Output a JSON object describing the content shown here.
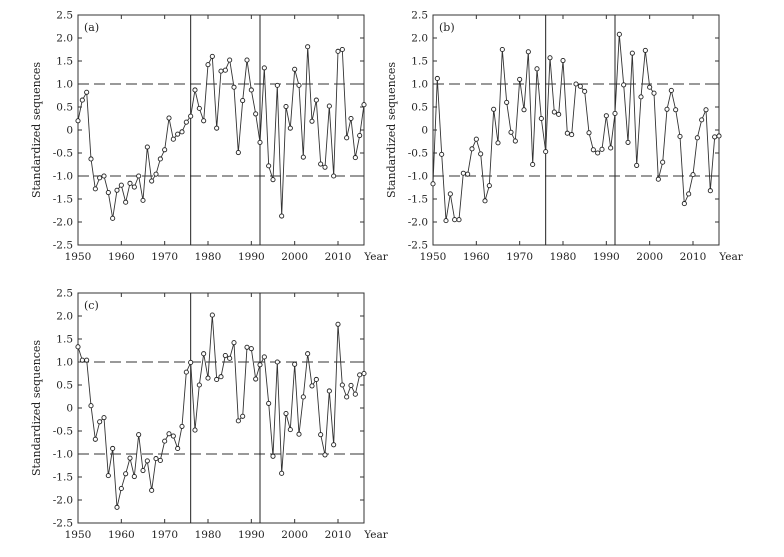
{
  "figure": {
    "ylabel": "Standardized sequences",
    "x_ticks": [
      "1950",
      "1960",
      "1970",
      "1980",
      "1990",
      "2000",
      "2010"
    ],
    "x_unit": "Year",
    "y_ticks": [
      "2.5",
      "2.0",
      "1.5",
      "1.0",
      "0.5",
      "0",
      "-0.5",
      "-1.0",
      "-1.5",
      "-2.0",
      "-2.5"
    ]
  },
  "chart_data": [
    {
      "type": "line",
      "panel_label": "(a)",
      "ylabel": "Standardized sequences",
      "xlim": [
        1950,
        2016
      ],
      "ylim": [
        -2.5,
        2.5
      ],
      "grid": false,
      "reference_lines_y": [
        1.0,
        -1.0
      ],
      "vertical_lines_x": [
        1976,
        1992
      ],
      "x": [
        1950,
        1951,
        1952,
        1953,
        1954,
        1955,
        1956,
        1957,
        1958,
        1959,
        1960,
        1961,
        1962,
        1963,
        1964,
        1965,
        1966,
        1967,
        1968,
        1969,
        1970,
        1971,
        1972,
        1973,
        1974,
        1975,
        1976,
        1977,
        1978,
        1979,
        1980,
        1981,
        1982,
        1983,
        1984,
        1985,
        1986,
        1987,
        1988,
        1989,
        1990,
        1991,
        1992,
        1993,
        1994,
        1995,
        1996,
        1997,
        1998,
        1999,
        2000,
        2001,
        2002,
        2003,
        2004,
        2005,
        2006,
        2007,
        2008,
        2009,
        2010,
        2011,
        2012,
        2013,
        2014,
        2015,
        2016
      ],
      "values": [
        0.2,
        0.65,
        0.82,
        -0.63,
        -1.28,
        -1.04,
        -1.0,
        -1.36,
        -1.92,
        -1.31,
        -1.2,
        -1.57,
        -1.16,
        -1.24,
        -1.0,
        -1.53,
        -0.37,
        -1.11,
        -0.96,
        -0.63,
        -0.43,
        0.26,
        -0.2,
        -0.09,
        -0.04,
        0.17,
        0.3,
        0.87,
        0.47,
        0.2,
        1.42,
        1.6,
        0.04,
        1.28,
        1.3,
        1.52,
        0.93,
        -0.49,
        0.64,
        1.52,
        0.87,
        0.35,
        -0.27,
        1.35,
        -0.78,
        -1.08,
        0.97,
        -1.87,
        0.51,
        0.04,
        1.32,
        0.97,
        -0.59,
        1.81,
        0.19,
        0.65,
        -0.74,
        -0.81,
        0.52,
        -1.0,
        1.71,
        1.75,
        -0.17,
        0.25,
        -0.6,
        -0.12,
        0.55
      ]
    },
    {
      "type": "line",
      "panel_label": "(b)",
      "ylabel": "Standardized sequences",
      "xlim": [
        1950,
        2016
      ],
      "ylim": [
        -2.5,
        2.5
      ],
      "grid": false,
      "reference_lines_y": [
        1.0,
        -1.0
      ],
      "vertical_lines_x": [
        1976,
        1992
      ],
      "x": [
        1950,
        1951,
        1952,
        1953,
        1954,
        1955,
        1956,
        1957,
        1958,
        1959,
        1960,
        1961,
        1962,
        1963,
        1964,
        1965,
        1966,
        1967,
        1968,
        1969,
        1970,
        1971,
        1972,
        1973,
        1974,
        1975,
        1976,
        1977,
        1978,
        1979,
        1980,
        1981,
        1982,
        1983,
        1984,
        1985,
        1986,
        1987,
        1988,
        1989,
        1990,
        1991,
        1992,
        1993,
        1994,
        1995,
        1996,
        1997,
        1998,
        1999,
        2000,
        2001,
        2002,
        2003,
        2004,
        2005,
        2006,
        2007,
        2008,
        2009,
        2010,
        2011,
        2012,
        2013,
        2014,
        2015,
        2016
      ],
      "values": [
        -1.17,
        1.12,
        -0.53,
        -1.97,
        -1.39,
        -1.95,
        -1.95,
        -0.94,
        -0.96,
        -0.41,
        -0.2,
        -0.52,
        -1.54,
        -1.21,
        0.45,
        -0.28,
        1.75,
        0.6,
        -0.05,
        -0.24,
        1.1,
        0.44,
        1.7,
        -0.75,
        1.33,
        0.25,
        -0.47,
        1.57,
        0.39,
        0.34,
        1.51,
        -0.07,
        -0.1,
        1.0,
        0.95,
        0.84,
        -0.06,
        -0.43,
        -0.5,
        -0.42,
        0.31,
        -0.39,
        0.36,
        2.08,
        0.98,
        -0.27,
        1.67,
        -0.77,
        0.72,
        1.73,
        0.93,
        0.8,
        -1.07,
        -0.7,
        0.45,
        0.86,
        0.44,
        -0.14,
        -1.6,
        -1.39,
        -0.97,
        -0.17,
        0.22,
        0.44,
        -1.32,
        -0.15,
        -0.13
      ]
    },
    {
      "type": "line",
      "panel_label": "(c)",
      "ylabel": "Standardized sequences",
      "xlim": [
        1950,
        2016
      ],
      "ylim": [
        -2.5,
        2.5
      ],
      "grid": false,
      "reference_lines_y": [
        1.0,
        -1.0
      ],
      "vertical_lines_x": [
        1976,
        1992
      ],
      "x": [
        1950,
        1951,
        1952,
        1953,
        1954,
        1955,
        1956,
        1957,
        1958,
        1959,
        1960,
        1961,
        1962,
        1963,
        1964,
        1965,
        1966,
        1967,
        1968,
        1969,
        1970,
        1971,
        1972,
        1973,
        1974,
        1975,
        1976,
        1977,
        1978,
        1979,
        1980,
        1981,
        1982,
        1983,
        1984,
        1985,
        1986,
        1987,
        1988,
        1989,
        1990,
        1991,
        1992,
        1993,
        1994,
        1995,
        1996,
        1997,
        1998,
        1999,
        2000,
        2001,
        2002,
        2003,
        2004,
        2005,
        2006,
        2007,
        2008,
        2009,
        2010,
        2011,
        2012,
        2013,
        2014,
        2015,
        2016
      ],
      "values": [
        1.33,
        1.04,
        1.04,
        0.05,
        -0.68,
        -0.3,
        -0.21,
        -1.47,
        -0.88,
        -2.16,
        -1.75,
        -1.43,
        -1.09,
        -1.49,
        -0.58,
        -1.36,
        -1.15,
        -1.79,
        -1.1,
        -1.14,
        -0.72,
        -0.56,
        -0.61,
        -0.88,
        -0.4,
        0.78,
        0.99,
        -0.48,
        0.5,
        1.18,
        0.65,
        2.02,
        0.62,
        0.68,
        1.14,
        1.08,
        1.42,
        -0.28,
        -0.18,
        1.32,
        1.29,
        0.63,
        0.94,
        1.11,
        0.1,
        -1.05,
        1.0,
        -1.42,
        -0.12,
        -0.47,
        0.95,
        -0.57,
        0.24,
        1.18,
        0.48,
        0.62,
        -0.58,
        -1.02,
        0.37,
        -0.8,
        1.82,
        0.5,
        0.24,
        0.49,
        0.3,
        0.72,
        0.75
      ]
    }
  ]
}
